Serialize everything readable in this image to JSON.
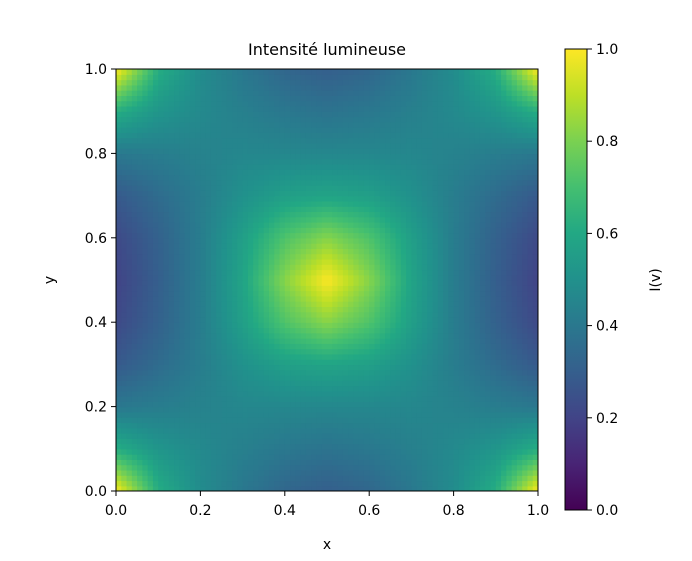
{
  "chart_data": {
    "type": "heatmap",
    "title": "Intensité lumineuse",
    "xlabel": "x",
    "ylabel": "y",
    "xlim": [
      0.0,
      1.0
    ],
    "ylim": [
      0.0,
      1.0
    ],
    "x_ticks": [
      "0.0",
      "0.2",
      "0.4",
      "0.6",
      "0.8",
      "1.0"
    ],
    "y_ticks": [
      "0.0",
      "0.2",
      "0.4",
      "0.6",
      "0.8",
      "1.0"
    ],
    "colormap": "viridis",
    "colorbar": {
      "label": "I(v)",
      "range": [
        0.0,
        1.0
      ],
      "ticks": [
        "0.0",
        "0.2",
        "0.4",
        "0.6",
        "0.8",
        "1.0"
      ]
    },
    "grid_resolution": 11,
    "grid": [
      [
        1.0,
        0.62,
        0.48,
        0.4,
        0.33,
        0.3,
        0.33,
        0.4,
        0.48,
        0.62,
        1.0
      ],
      [
        0.62,
        0.52,
        0.47,
        0.43,
        0.4,
        0.38,
        0.4,
        0.43,
        0.47,
        0.52,
        0.62
      ],
      [
        0.4,
        0.42,
        0.44,
        0.46,
        0.46,
        0.46,
        0.46,
        0.46,
        0.44,
        0.42,
        0.4
      ],
      [
        0.28,
        0.35,
        0.42,
        0.5,
        0.56,
        0.58,
        0.56,
        0.5,
        0.42,
        0.35,
        0.28
      ],
      [
        0.22,
        0.31,
        0.42,
        0.56,
        0.72,
        0.82,
        0.72,
        0.56,
        0.42,
        0.31,
        0.22
      ],
      [
        0.2,
        0.3,
        0.42,
        0.58,
        0.82,
        1.0,
        0.82,
        0.58,
        0.42,
        0.3,
        0.2
      ],
      [
        0.22,
        0.31,
        0.42,
        0.56,
        0.72,
        0.82,
        0.72,
        0.56,
        0.42,
        0.31,
        0.22
      ],
      [
        0.28,
        0.35,
        0.42,
        0.5,
        0.56,
        0.58,
        0.56,
        0.5,
        0.42,
        0.35,
        0.28
      ],
      [
        0.4,
        0.42,
        0.44,
        0.46,
        0.46,
        0.46,
        0.46,
        0.46,
        0.44,
        0.42,
        0.4
      ],
      [
        0.62,
        0.52,
        0.47,
        0.43,
        0.4,
        0.38,
        0.4,
        0.43,
        0.47,
        0.52,
        0.62
      ],
      [
        1.0,
        0.62,
        0.48,
        0.4,
        0.33,
        0.3,
        0.33,
        0.4,
        0.48,
        0.62,
        1.0
      ]
    ]
  }
}
